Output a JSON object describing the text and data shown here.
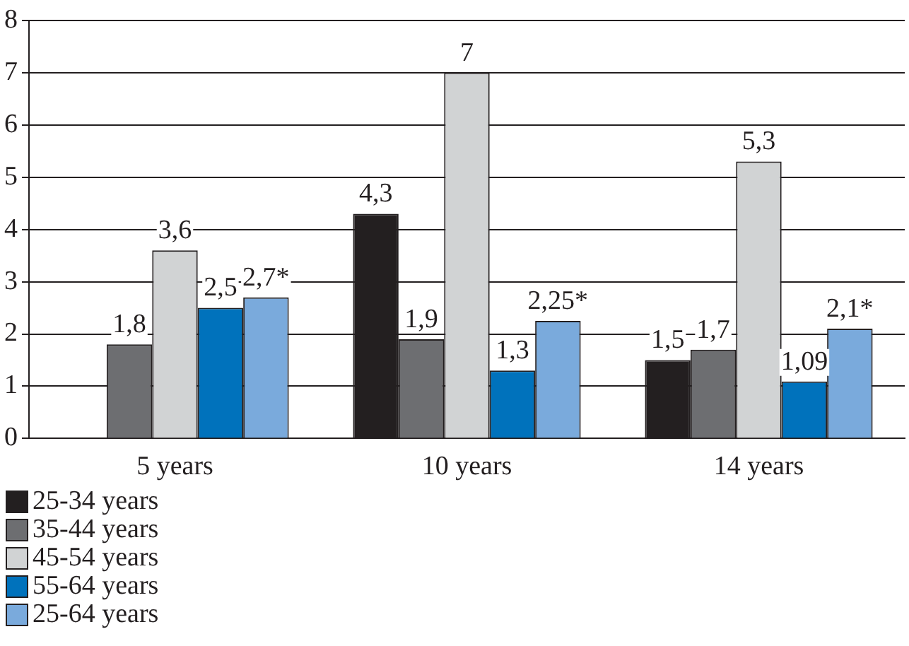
{
  "chart_data": {
    "type": "bar",
    "categories": [
      "5 years",
      "10 years",
      "14 years"
    ],
    "series": [
      {
        "name": "25-34 years",
        "color": "#231f20",
        "values": [
          null,
          4.3,
          1.5
        ],
        "value_labels": [
          null,
          "4,3",
          "1,5"
        ]
      },
      {
        "name": "35-44 years",
        "color": "#6d6e71",
        "values": [
          1.8,
          1.9,
          1.7
        ],
        "value_labels": [
          "1,8",
          "1,9",
          "1,7"
        ]
      },
      {
        "name": "45-54 years",
        "color": "#d1d3d4",
        "values": [
          3.6,
          7,
          5.3
        ],
        "value_labels": [
          "3,6",
          "7",
          "5,3"
        ]
      },
      {
        "name": "55-64 years",
        "color": "#0072bc",
        "values": [
          2.5,
          1.3,
          1.09
        ],
        "value_labels": [
          "2,5",
          "1,3",
          "1,09"
        ]
      },
      {
        "name": "25-64 years",
        "color": "#7aaadc",
        "values": [
          2.7,
          2.25,
          2.1
        ],
        "value_labels": [
          "2,7*",
          "2,25*",
          "2,1*"
        ]
      }
    ],
    "ylim": [
      0,
      8
    ],
    "yticks": [
      0,
      1,
      2,
      3,
      4,
      5,
      6,
      7,
      8
    ],
    "grid": "y",
    "legend": "bottom left"
  }
}
